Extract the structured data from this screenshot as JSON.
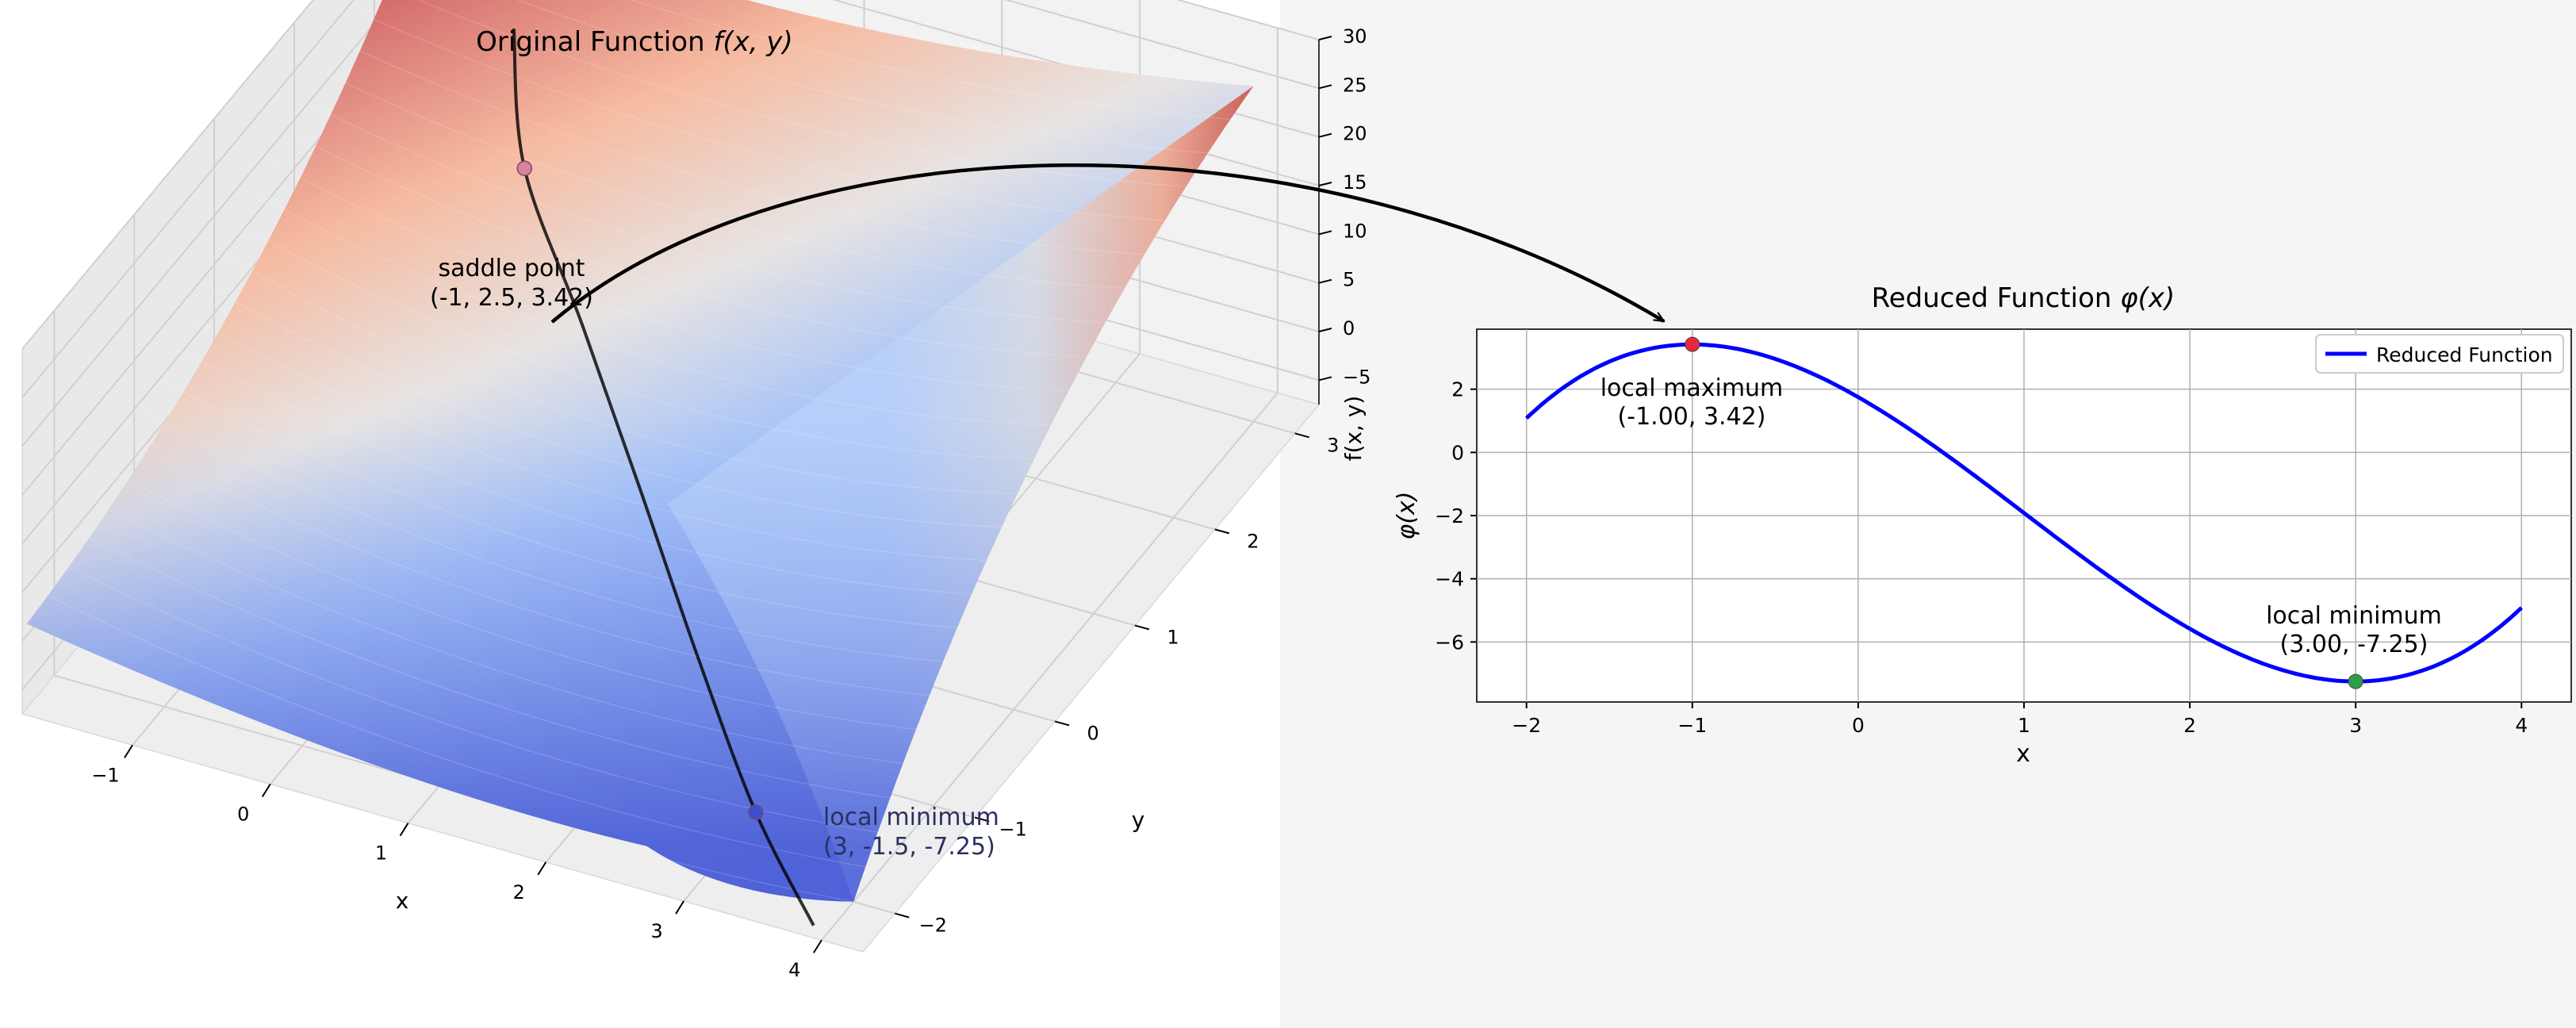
{
  "page": {
    "background_left": "#ffffff",
    "background_right": "#f5f5f5"
  },
  "chart_data": [
    {
      "type": "surface",
      "title_prefix": "Original Function ",
      "title_math": "f(x, y)",
      "xlabel": "x",
      "ylabel": "y",
      "zlabel": "f(x, y)",
      "xlim": [
        -1.8,
        4.3
      ],
      "ylim": [
        -2.4,
        3.3
      ],
      "zlim": [
        -7.5,
        30
      ],
      "x_ticks": [
        -1,
        0,
        1,
        2,
        3,
        4
      ],
      "y_ticks": [
        -2,
        -1,
        0,
        1,
        2,
        3
      ],
      "z_ticks": [
        -5,
        0,
        5,
        10,
        15,
        20,
        25,
        30
      ],
      "colormap": "coolwarm",
      "grid": true,
      "surface_corner_values": [
        {
          "x": -2,
          "y": -2,
          "z": -3
        },
        {
          "x": -2,
          "y": 3,
          "z": 23
        },
        {
          "x": 4,
          "y": 3,
          "z": 27
        },
        {
          "x": 4,
          "y": -2,
          "z": -7.5
        }
      ],
      "constraint_curve": {
        "color": "#000000",
        "points": [
          {
            "x": -1.6,
            "y": 3.4,
            "z": 6.5
          },
          {
            "x": -1,
            "y": 2.5,
            "z": 3.42
          },
          {
            "x": 0,
            "y": 1.5,
            "z": 1.2
          },
          {
            "x": 1,
            "y": 0.5,
            "z": -1.8
          },
          {
            "x": 2,
            "y": -0.5,
            "z": -5.2
          },
          {
            "x": 3,
            "y": -1.5,
            "z": -7.25
          },
          {
            "x": 4,
            "y": -2.5,
            "z": -5
          }
        ]
      },
      "points": [
        {
          "name": "saddle point",
          "coords": "(-1, 2.5, 3.42)",
          "x": -1,
          "y": 2.5,
          "z": 3.42,
          "color": "#d9829e"
        },
        {
          "name": "local minimum",
          "coords": "(3, -1.5, -7.25)",
          "x": 3,
          "y": -1.5,
          "z": -7.25,
          "color": "#3a4fd0"
        }
      ]
    },
    {
      "type": "line",
      "title_prefix": "Reduced Function ",
      "title_math": "φ(x)",
      "xlabel": "x",
      "ylabel": "φ(x)",
      "xlim": [
        -2.3,
        4.3
      ],
      "ylim": [
        -7.9,
        3.9
      ],
      "x_ticks": [
        -2,
        -1,
        0,
        1,
        2,
        3,
        4
      ],
      "y_ticks": [
        -6,
        -4,
        -2,
        0,
        2
      ],
      "grid": true,
      "legend_position": "top-right",
      "series": [
        {
          "name": "Reduced Function",
          "color": "#0000ff",
          "function": "x^3/3 - x^2 - 3x + 1.75",
          "x_range": [
            -2,
            4
          ]
        }
      ],
      "points": [
        {
          "name": "local maximum",
          "coords": "(-1.00, 3.42)",
          "x": -1,
          "y": 3.42,
          "color": "#e8283c"
        },
        {
          "name": "local minimum",
          "coords": "(3.00, -7.25)",
          "x": 3,
          "y": -7.25,
          "color": "#2e9e46"
        }
      ]
    }
  ],
  "arrow": {
    "color": "#000000"
  }
}
